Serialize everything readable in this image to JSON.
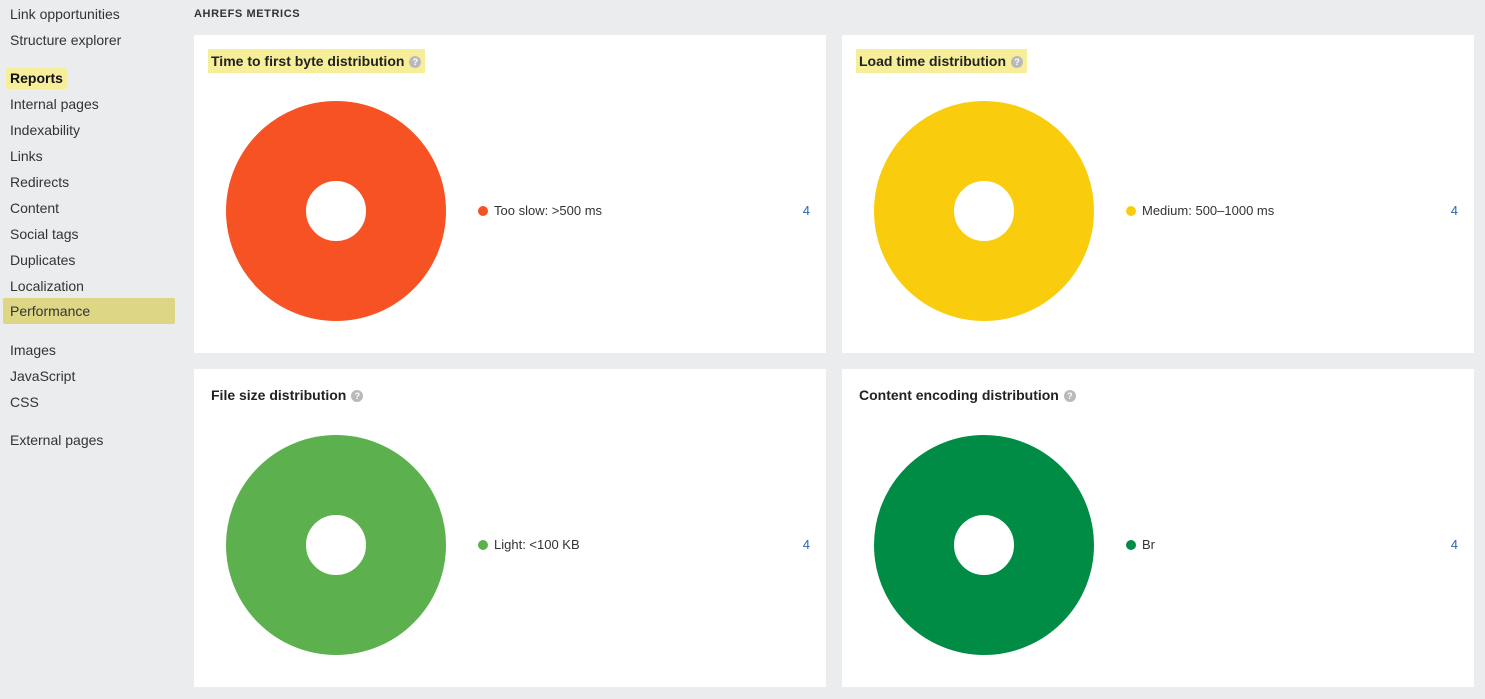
{
  "sidebar": {
    "items_top": [
      {
        "label": "Link opportunities"
      },
      {
        "label": "Structure explorer"
      }
    ],
    "group_title": "Reports",
    "report_items": [
      {
        "label": "Internal pages"
      },
      {
        "label": "Indexability"
      },
      {
        "label": "Links"
      },
      {
        "label": "Redirects"
      },
      {
        "label": "Content"
      },
      {
        "label": "Social tags"
      },
      {
        "label": "Duplicates"
      },
      {
        "label": "Localization"
      },
      {
        "label": "Performance"
      }
    ],
    "resource_items": [
      {
        "label": "Images"
      },
      {
        "label": "JavaScript"
      },
      {
        "label": "CSS"
      }
    ],
    "external_items": [
      {
        "label": "External pages"
      }
    ],
    "active_item": "Performance"
  },
  "section_label": "AHREFS METRICS",
  "help_icon_glyph": "?",
  "cards": [
    {
      "title": "Time to first byte distribution",
      "highlighted": true,
      "chart_data": {
        "type": "pie",
        "slices": [
          {
            "label": "Too slow: >500 ms",
            "value": 4,
            "color": "#f75223"
          }
        ]
      }
    },
    {
      "title": "Load time distribution",
      "highlighted": true,
      "chart_data": {
        "type": "pie",
        "slices": [
          {
            "label": "Medium: 500–1000 ms",
            "value": 4,
            "color": "#f9cd0e"
          }
        ]
      }
    },
    {
      "title": "File size distribution",
      "highlighted": false,
      "chart_data": {
        "type": "pie",
        "slices": [
          {
            "label": "Light: <100 KB",
            "value": 4,
            "color": "#5cb14e"
          }
        ]
      }
    },
    {
      "title": "Content encoding distribution",
      "highlighted": false,
      "chart_data": {
        "type": "pie",
        "slices": [
          {
            "label": "Br",
            "value": 4,
            "color": "#008c45"
          }
        ]
      }
    }
  ]
}
